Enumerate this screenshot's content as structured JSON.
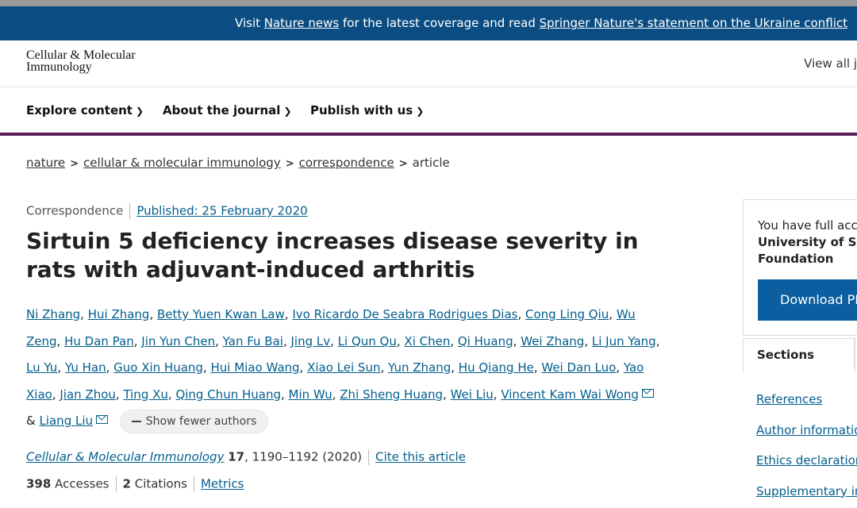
{
  "banner": {
    "pre": "Visit ",
    "link1": "Nature news",
    "mid": " for the latest coverage and read ",
    "link2": "Springer Nature's statement on the Ukraine conflict"
  },
  "header": {
    "logo_line1": "Cellular & Molecular",
    "logo_line2": "Immunology",
    "view_all": "View all j"
  },
  "nav": {
    "items": [
      "Explore content",
      "About the journal",
      "Publish with us"
    ]
  },
  "breadcrumb": {
    "items": [
      "nature",
      "cellular & molecular immunology",
      "correspondence",
      "article"
    ]
  },
  "article": {
    "type": "Correspondence",
    "published": "Published: 25 February 2020",
    "title": "Sirtuin 5 deficiency increases disease severity in rats with adjuvant-induced arthritis",
    "authors": [
      "Ni Zhang",
      "Hui Zhang",
      "Betty Yuen Kwan Law",
      "Ivo Ricardo De Seabra Rodrigues Dias",
      "Cong Ling Qiu",
      "Wu Zeng",
      "Hu Dan Pan",
      "Jin Yun Chen",
      "Yan Fu Bai",
      "Jing Lv",
      "Li Qun Qu",
      "Xi Chen",
      "Qi Huang",
      "Wei Zhang",
      "Li Jun Yang",
      "Lu Yu",
      "Yu Han",
      "Guo Xin Huang",
      "Hui Miao Wang",
      "Xiao Lei Sun",
      "Yun Zhang",
      "Hu Qiang He",
      "Wei Dan Luo",
      "Yao Xiao",
      "Jian Zhou",
      "Ting Xu",
      "Qing Chun Huang",
      "Min Wu",
      "Zhi Sheng Huang",
      "Wei Liu",
      "Vincent Kam Wai Wong"
    ],
    "last_author_prefix": "& ",
    "last_author": "Liang Liu",
    "show_fewer": "Show fewer authors",
    "journal": "Cellular & Molecular Immunology",
    "volume": "17",
    "pages": ", 1190–1192 (2020)",
    "cite": "Cite this article",
    "accesses_num": "398",
    "accesses_label": "Accesses",
    "citations_num": "2",
    "citations_label": "Citations",
    "metrics": "Metrics"
  },
  "sidebar": {
    "access_line1": "You have full acce",
    "access_line2": "University of Sci",
    "access_line3": "Foundation",
    "download": "Download PDF",
    "sections_tab": "Sections",
    "links": [
      "References",
      "Author informatio",
      "Ethics declaration",
      "Supplementary in"
    ]
  }
}
